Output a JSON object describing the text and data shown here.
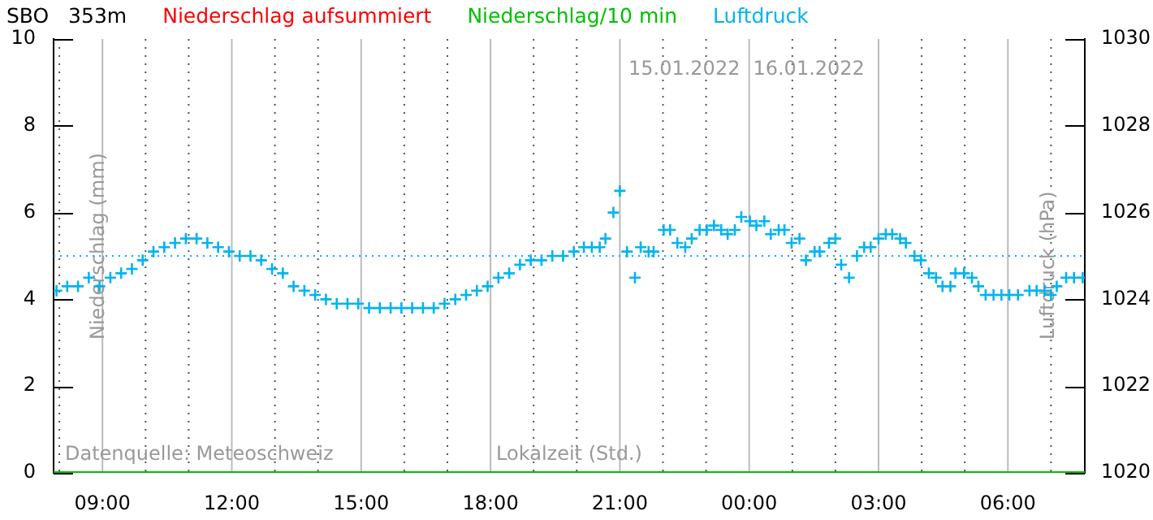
{
  "chart_data": {
    "type": "scatter",
    "title": "SBO   353m",
    "xlabel": "Lokalzeit (Std.)",
    "ylabel": "Niederschlag (mm)",
    "y2label": "Luftdruck (hPa)",
    "annotations": [
      "15.01.2022",
      "16.01.2022",
      "Datenquelle: Meteoschweiz"
    ],
    "legend": "top",
    "grid": "x",
    "xlim": [
      "2022-01-15T07:52",
      "2022-01-16T07:47"
    ],
    "xticks": [
      {
        "value": "2022-01-15T08:00",
        "label": null
      },
      {
        "value": "2022-01-15T09:00",
        "label": "09:00"
      },
      {
        "value": "2022-01-15T10:00",
        "label": null
      },
      {
        "value": "2022-01-15T11:00",
        "label": null
      },
      {
        "value": "2022-01-15T12:00",
        "label": "12:00"
      },
      {
        "value": "2022-01-15T13:00",
        "label": null
      },
      {
        "value": "2022-01-15T14:00",
        "label": null
      },
      {
        "value": "2022-01-15T15:00",
        "label": "15:00"
      },
      {
        "value": "2022-01-15T16:00",
        "label": null
      },
      {
        "value": "2022-01-15T17:00",
        "label": null
      },
      {
        "value": "2022-01-15T18:00",
        "label": "18:00"
      },
      {
        "value": "2022-01-15T19:00",
        "label": null
      },
      {
        "value": "2022-01-15T20:00",
        "label": null
      },
      {
        "value": "2022-01-15T21:00",
        "label": "21:00"
      },
      {
        "value": "2022-01-15T22:00",
        "label": null
      },
      {
        "value": "2022-01-15T23:00",
        "label": null
      },
      {
        "value": "2022-01-16T00:00",
        "label": "00:00"
      },
      {
        "value": "2022-01-16T01:00",
        "label": null
      },
      {
        "value": "2022-01-16T02:00",
        "label": null
      },
      {
        "value": "2022-01-16T03:00",
        "label": "03:00"
      },
      {
        "value": "2022-01-16T04:00",
        "label": null
      },
      {
        "value": "2022-01-16T05:00",
        "label": null
      },
      {
        "value": "2022-01-16T06:00",
        "label": "06:00"
      },
      {
        "value": "2022-01-16T07:00",
        "label": null
      }
    ],
    "ylim": [
      0,
      10
    ],
    "yticks": [
      0,
      2,
      4,
      6,
      8,
      10
    ],
    "y2lim": [
      1020,
      1030
    ],
    "y2ticks": [
      1020,
      1022,
      1024,
      1026,
      1028,
      1030
    ],
    "ref_lines": [
      {
        "axis": "y2",
        "value": 1025,
        "color": "#00b4f0",
        "line_style": "dotted"
      }
    ],
    "series": [
      {
        "name": "Niederschlag aufsummiert",
        "type": "line",
        "color": "#ff0000"
      },
      {
        "name": "Niederschlag/10 min",
        "type": "line",
        "marker": "none",
        "color": "#00c000",
        "x": [
          "2022-01-15T07:52",
          "2022-01-16T07:47"
        ],
        "values": [
          0,
          0
        ]
      },
      {
        "name": "Luftdruck",
        "type": "scatter",
        "marker": "cross",
        "axis": "y2",
        "color": "#00b4f0",
        "x": [
          "2022-01-15T07:56",
          "2022-01-15T08:11",
          "2022-01-15T08:26",
          "2022-01-15T08:41",
          "2022-01-15T08:56",
          "2022-01-15T09:11",
          "2022-01-15T09:26",
          "2022-01-15T09:41",
          "2022-01-15T09:56",
          "2022-01-15T10:11",
          "2022-01-15T10:26",
          "2022-01-15T10:41",
          "2022-01-15T10:56",
          "2022-01-15T11:11",
          "2022-01-15T11:26",
          "2022-01-15T11:41",
          "2022-01-15T11:56",
          "2022-01-15T12:11",
          "2022-01-15T12:26",
          "2022-01-15T12:41",
          "2022-01-15T12:56",
          "2022-01-15T13:11",
          "2022-01-15T13:26",
          "2022-01-15T13:41",
          "2022-01-15T13:56",
          "2022-01-15T14:11",
          "2022-01-15T14:26",
          "2022-01-15T14:41",
          "2022-01-15T14:56",
          "2022-01-15T15:11",
          "2022-01-15T15:26",
          "2022-01-15T15:41",
          "2022-01-15T15:56",
          "2022-01-15T16:11",
          "2022-01-15T16:26",
          "2022-01-15T16:41",
          "2022-01-15T16:56",
          "2022-01-15T17:11",
          "2022-01-15T17:26",
          "2022-01-15T17:41",
          "2022-01-15T17:56",
          "2022-01-15T18:11",
          "2022-01-15T18:26",
          "2022-01-15T18:41",
          "2022-01-15T18:56",
          "2022-01-15T19:11",
          "2022-01-15T19:26",
          "2022-01-15T19:41",
          "2022-01-15T19:56",
          "2022-01-15T20:10",
          "2022-01-15T20:21",
          "2022-01-15T20:32",
          "2022-01-15T20:40",
          "2022-01-15T20:51",
          "2022-01-15T21:00",
          "2022-01-15T21:10",
          "2022-01-15T21:21",
          "2022-01-15T21:29",
          "2022-01-15T21:40",
          "2022-01-15T21:47",
          "2022-01-15T22:01",
          "2022-01-15T22:10",
          "2022-01-15T22:20",
          "2022-01-15T22:31",
          "2022-01-15T22:40",
          "2022-01-15T22:51",
          "2022-01-15T23:01",
          "2022-01-15T23:11",
          "2022-01-15T23:21",
          "2022-01-15T23:30",
          "2022-01-15T23:40",
          "2022-01-15T23:49",
          "2022-01-16T00:01",
          "2022-01-16T00:10",
          "2022-01-16T00:21",
          "2022-01-16T00:30",
          "2022-01-16T00:41",
          "2022-01-16T00:49",
          "2022-01-16T00:59",
          "2022-01-16T01:10",
          "2022-01-16T01:19",
          "2022-01-16T01:31",
          "2022-01-16T01:38",
          "2022-01-16T01:51",
          "2022-01-16T02:00",
          "2022-01-16T02:08",
          "2022-01-16T02:19",
          "2022-01-16T02:30",
          "2022-01-16T02:40",
          "2022-01-16T02:49",
          "2022-01-16T03:00",
          "2022-01-16T03:10",
          "2022-01-16T03:19",
          "2022-01-16T03:30",
          "2022-01-16T03:38",
          "2022-01-16T03:50",
          "2022-01-16T03:59",
          "2022-01-16T04:10",
          "2022-01-16T04:20",
          "2022-01-16T04:29",
          "2022-01-16T04:40",
          "2022-01-16T04:47",
          "2022-01-16T04:59",
          "2022-01-16T05:10",
          "2022-01-16T05:19",
          "2022-01-16T05:29",
          "2022-01-16T05:40",
          "2022-01-16T05:51",
          "2022-01-16T06:02",
          "2022-01-16T06:14",
          "2022-01-16T06:30",
          "2022-01-16T06:40",
          "2022-01-16T06:51",
          "2022-01-16T07:00",
          "2022-01-16T07:08",
          "2022-01-16T07:21",
          "2022-01-16T07:32",
          "2022-01-16T07:44"
        ],
        "values": [
          1024.2,
          1024.3,
          1024.3,
          1024.5,
          1024.3,
          1024.5,
          1024.6,
          1024.7,
          1024.9,
          1025.1,
          1025.2,
          1025.3,
          1025.4,
          1025.4,
          1025.3,
          1025.2,
          1025.1,
          1025.0,
          1025.0,
          1024.9,
          1024.7,
          1024.6,
          1024.3,
          1024.2,
          1024.1,
          1024.0,
          1023.9,
          1023.9,
          1023.9,
          1023.8,
          1023.8,
          1023.8,
          1023.8,
          1023.8,
          1023.8,
          1023.8,
          1023.9,
          1024.0,
          1024.1,
          1024.2,
          1024.3,
          1024.5,
          1024.6,
          1024.8,
          1024.9,
          1024.9,
          1025.0,
          1025.0,
          1025.1,
          1025.2,
          1025.2,
          1025.2,
          1025.4,
          1026.0,
          1026.5,
          1025.1,
          1024.5,
          1025.2,
          1025.1,
          1025.1,
          1025.6,
          1025.6,
          1025.3,
          1025.2,
          1025.4,
          1025.6,
          1025.6,
          1025.7,
          1025.6,
          1025.5,
          1025.6,
          1025.9,
          1025.8,
          1025.7,
          1025.8,
          1025.5,
          1025.6,
          1025.6,
          1025.3,
          1025.4,
          1024.9,
          1025.1,
          1025.1,
          1025.3,
          1025.4,
          1024.8,
          1024.5,
          1025.0,
          1025.2,
          1025.2,
          1025.4,
          1025.5,
          1025.5,
          1025.4,
          1025.3,
          1025.0,
          1024.9,
          1024.6,
          1024.5,
          1024.3,
          1024.3,
          1024.6,
          1024.6,
          1024.5,
          1024.3,
          1024.1,
          1024.1,
          1024.1,
          1024.1,
          1024.1,
          1024.2,
          1024.2,
          1024.2,
          1024.1,
          1024.3,
          1024.5,
          1024.5,
          1024.5
        ]
      }
    ]
  }
}
